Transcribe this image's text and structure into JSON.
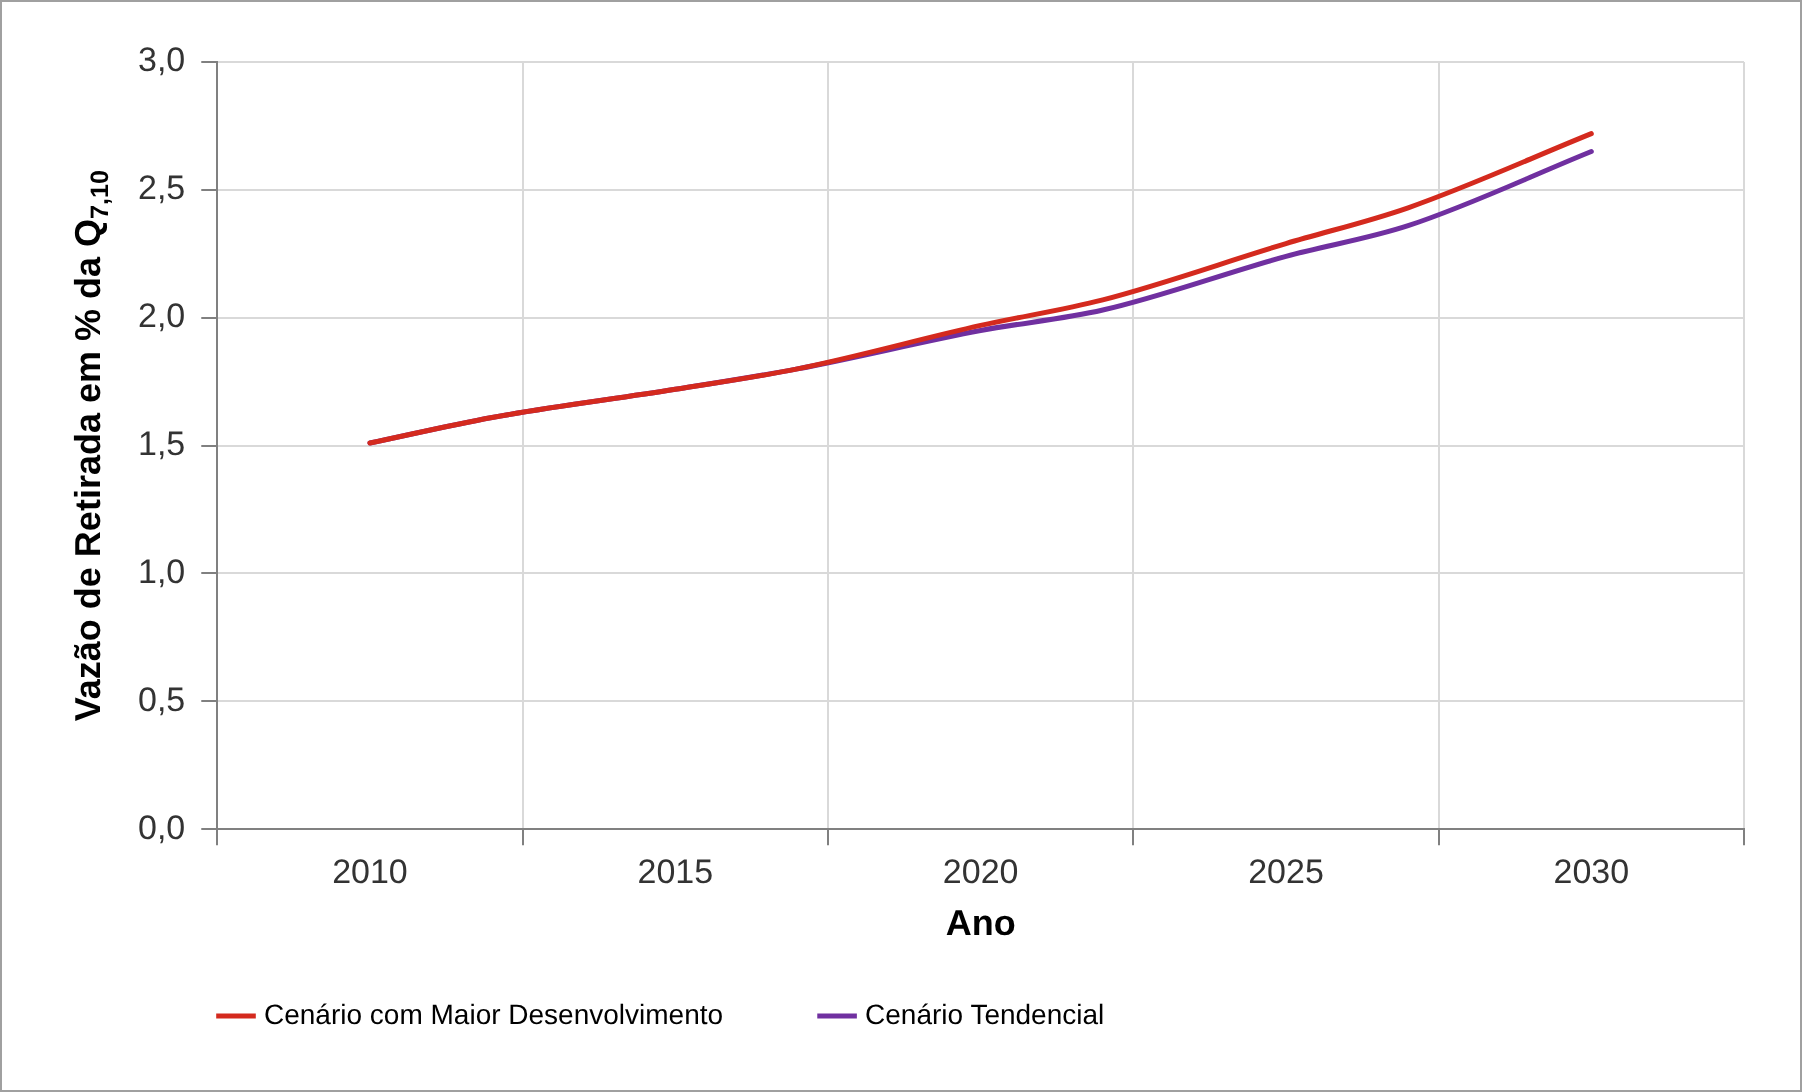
{
  "chart_data": {
    "type": "line",
    "xlabel": "Ano",
    "ylabel": "Vazão de Retirada em % da Q$_{7,10}$",
    "x": [
      2010,
      2012,
      2015,
      2017,
      2020,
      2022,
      2025,
      2027,
      2030
    ],
    "series": [
      {
        "name": "Cenário com Maior Desenvolvimento",
        "color": "#d42a1e",
        "values": [
          1.51,
          1.61,
          1.72,
          1.8,
          1.97,
          2.07,
          2.29,
          2.43,
          2.72
        ]
      },
      {
        "name": "Cenário Tendencial",
        "color": "#7030a0",
        "values": [
          1.51,
          1.61,
          1.72,
          1.8,
          1.95,
          2.03,
          2.24,
          2.36,
          2.65
        ]
      }
    ],
    "xlim": [
      2007.5,
      2032.5
    ],
    "xticks": [
      {
        "value": 2007.5,
        "label": null
      },
      2010,
      {
        "value": 2012.5,
        "label": null
      },
      2015,
      {
        "value": 2017.5,
        "label": null
      },
      2020,
      {
        "value": 2022.5,
        "label": null
      },
      2025,
      {
        "value": 2027.5,
        "label": null
      },
      2030,
      {
        "value": 2032.5,
        "label": null
      }
    ],
    "ylim": [
      0,
      3
    ],
    "yticks": [
      {
        "value": 0,
        "label": "0,0"
      },
      {
        "value": 0.5,
        "label": "0,5"
      },
      {
        "value": 1,
        "label": "1,0"
      },
      {
        "value": 1.5,
        "label": "1,5"
      },
      {
        "value": 2,
        "label": "2,0"
      },
      {
        "value": 2.5,
        "label": "2,5"
      },
      {
        "value": 3,
        "label": "3,0"
      }
    ],
    "grid": true,
    "legend": "bottom",
    "marker": "none",
    "line_style": "solid"
  }
}
